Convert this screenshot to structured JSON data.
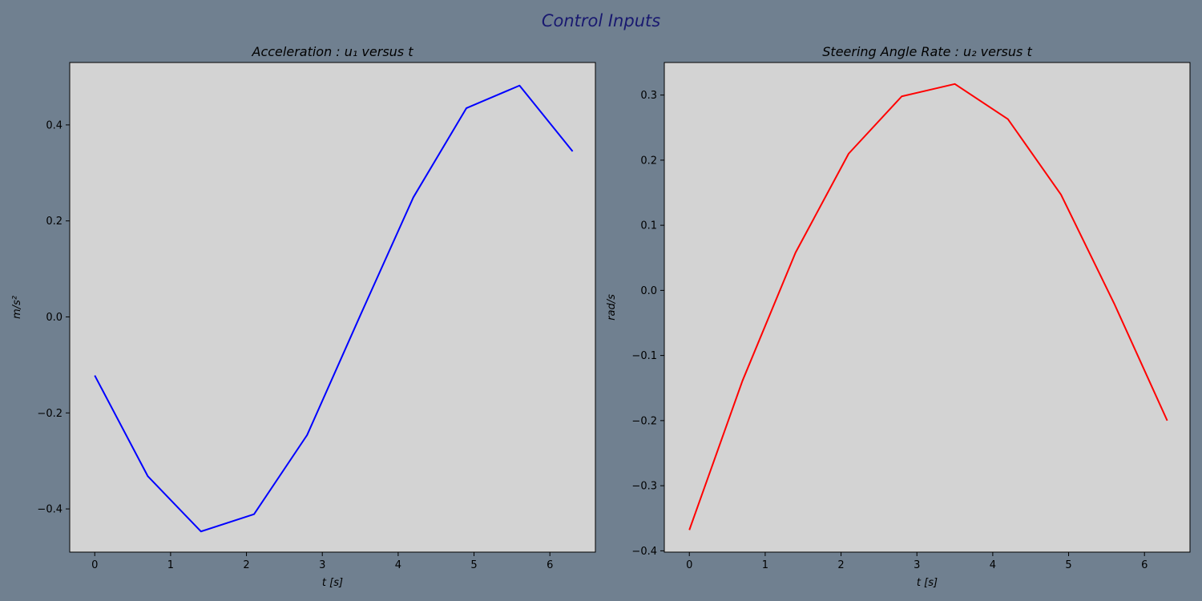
{
  "figure": {
    "title": "Control Inputs",
    "title_color": "#191970",
    "background": "#708090",
    "axes_background": "#d3d3d3"
  },
  "chart_data": [
    {
      "type": "line",
      "title": "Acceleration :  u₁ versus t",
      "xlabel": "t [s]",
      "ylabel": "m/s²",
      "xlim": [
        -0.33,
        6.6
      ],
      "ylim": [
        -0.49,
        0.53
      ],
      "xticks": [
        0,
        1,
        2,
        3,
        4,
        5,
        6
      ],
      "yticks": [
        -0.4,
        -0.2,
        0.0,
        0.2,
        0.4
      ],
      "ytick_labels": [
        "−0.4",
        "−0.2",
        "0.0",
        "0.2",
        "0.4"
      ],
      "grid": false,
      "series": [
        {
          "color": "#0000ff",
          "x": [
            0,
            0.7,
            1.4,
            2.1,
            2.8,
            3.5,
            4.2,
            4.9,
            5.6,
            6.3
          ],
          "y": [
            -0.122,
            -0.332,
            -0.447,
            -0.411,
            -0.246,
            0.003,
            0.249,
            0.435,
            0.482,
            0.345
          ]
        }
      ]
    },
    {
      "type": "line",
      "title": "Steering Angle Rate :  u₂ versus t",
      "xlabel": "t [s]",
      "ylabel": "rad/s",
      "xlim": [
        -0.33,
        6.6
      ],
      "ylim": [
        -0.402,
        0.35
      ],
      "xticks": [
        0,
        1,
        2,
        3,
        4,
        5,
        6
      ],
      "yticks": [
        -0.4,
        -0.3,
        -0.2,
        -0.1,
        0.0,
        0.1,
        0.2,
        0.3
      ],
      "ytick_labels": [
        "−0.4",
        "−0.3",
        "−0.2",
        "−0.1",
        "0.0",
        "0.1",
        "0.2",
        "0.3"
      ],
      "grid": false,
      "series": [
        {
          "color": "#ff0000",
          "x": [
            0,
            0.7,
            1.4,
            2.1,
            2.8,
            3.5,
            4.2,
            4.9,
            5.6,
            6.3
          ],
          "y": [
            -0.368,
            -0.139,
            0.058,
            0.21,
            0.298,
            0.317,
            0.263,
            0.147,
            -0.02,
            -0.2
          ]
        }
      ]
    }
  ]
}
